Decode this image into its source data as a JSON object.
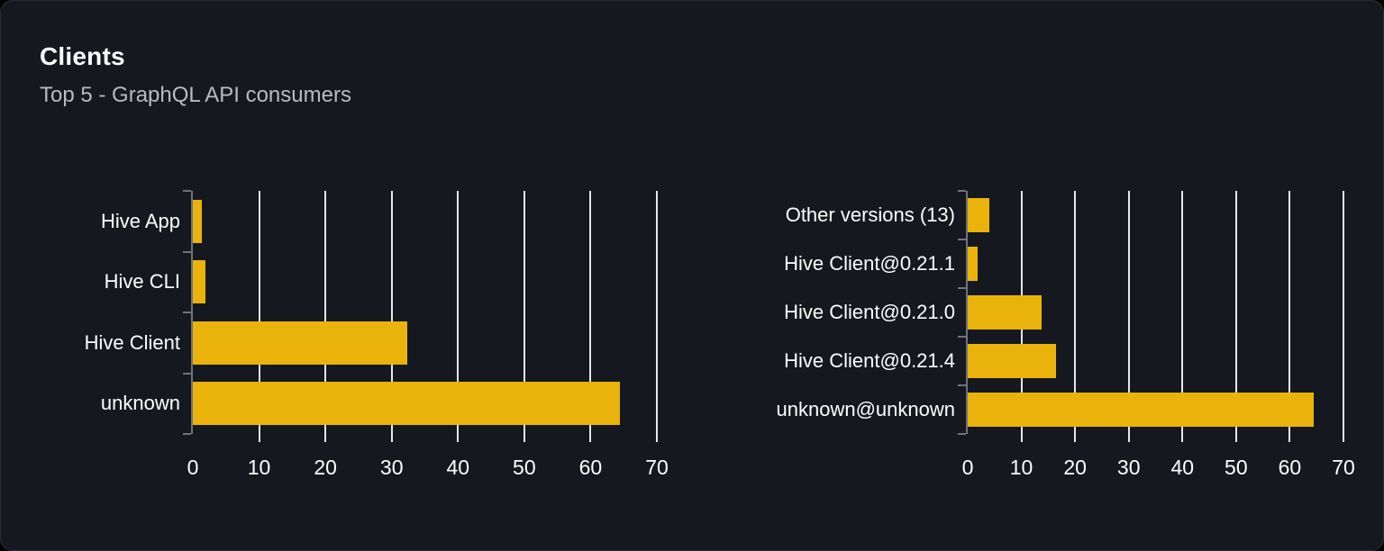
{
  "panel": {
    "title": "Clients",
    "subtitle": "Top 5 - GraphQL API consumers"
  },
  "colors": {
    "outside_bg": "#000000",
    "panel_bg": "#15181e",
    "panel_border": "#2a2d35",
    "bar": "#e9b30b",
    "gridline": "#e3e7ee",
    "axis": "#6e737d",
    "text": "#ffffff",
    "subtitle": "#b8bcc2"
  },
  "chart_data": [
    {
      "type": "bar",
      "orientation": "horizontal",
      "name": "clients-by-name",
      "title": "",
      "categories": [
        "Hive App",
        "Hive CLI",
        "Hive Client",
        "unknown"
      ],
      "values": [
        1.4,
        1.9,
        32.3,
        64.4
      ],
      "xlim": [
        0,
        70
      ],
      "x_ticks": [
        0,
        10,
        20,
        30,
        40,
        50,
        60,
        70
      ],
      "xlabel": "",
      "ylabel": "",
      "grid": true,
      "legend": false
    },
    {
      "type": "bar",
      "orientation": "horizontal",
      "name": "clients-by-version",
      "title": "",
      "categories": [
        "Other versions (13)",
        "Hive Client@0.21.1",
        "Hive Client@0.21.0",
        "Hive Client@0.21.4",
        "unknown@unknown"
      ],
      "values": [
        4.0,
        1.9,
        13.8,
        16.5,
        64.5
      ],
      "xlim": [
        0,
        70
      ],
      "x_ticks": [
        0,
        10,
        20,
        30,
        40,
        50,
        60,
        70
      ],
      "xlabel": "",
      "ylabel": "",
      "grid": true,
      "legend": false
    }
  ]
}
